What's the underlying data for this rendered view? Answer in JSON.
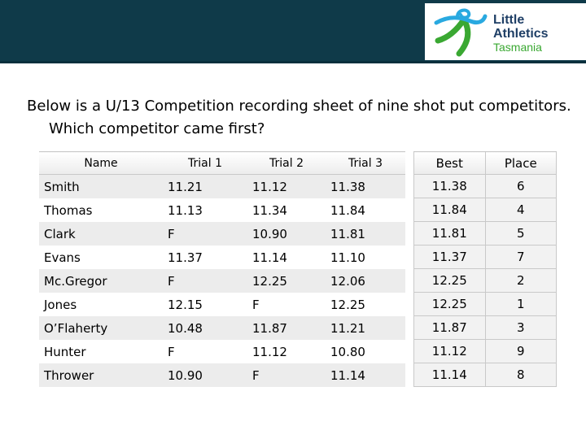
{
  "logo": {
    "line1": "Little",
    "line2": "Athletics",
    "line3": "Tasmania",
    "colors": {
      "navy": "#1f3f66",
      "green": "#3aa832",
      "cyan": "#29a9e0"
    }
  },
  "header": {
    "bar_color": "#0f3a49"
  },
  "question": "Below is a U/13 Competition recording sheet of nine shot put competitors. Which competitor came first?",
  "table": {
    "headers": {
      "name": "Name",
      "trial1": "Trial 1",
      "trial2": "Trial 2",
      "trial3": "Trial 3",
      "best": "Best",
      "place": "Place"
    },
    "rows": [
      {
        "name": "Smith",
        "trial1": "11.21",
        "trial2": "11.12",
        "trial3": "11.38",
        "best": "11.38",
        "place": "6"
      },
      {
        "name": "Thomas",
        "trial1": "11.13",
        "trial2": "11.34",
        "trial3": "11.84",
        "best": "11.84",
        "place": "4"
      },
      {
        "name": "Clark",
        "trial1": "F",
        "trial2": "10.90",
        "trial3": "11.81",
        "best": "11.81",
        "place": "5"
      },
      {
        "name": "Evans",
        "trial1": "11.37",
        "trial2": "11.14",
        "trial3": "11.10",
        "best": "11.37",
        "place": "7"
      },
      {
        "name": "Mc.Gregor",
        "trial1": "F",
        "trial2": "12.25",
        "trial3": "12.06",
        "best": "12.25",
        "place": "2"
      },
      {
        "name": "Jones",
        "trial1": "12.15",
        "trial2": "F",
        "trial3": "12.25",
        "best": "12.25",
        "place": "1"
      },
      {
        "name": "O’Flaherty",
        "trial1": "10.48",
        "trial2": "11.87",
        "trial3": "11.21",
        "best": "11.87",
        "place": "3"
      },
      {
        "name": "Hunter",
        "trial1": "F",
        "trial2": "11.12",
        "trial3": "10.80",
        "best": "11.12",
        "place": "9"
      },
      {
        "name": "Thrower",
        "trial1": "10.90",
        "trial2": "F",
        "trial3": "11.14",
        "best": "11.14",
        "place": "8"
      }
    ]
  }
}
